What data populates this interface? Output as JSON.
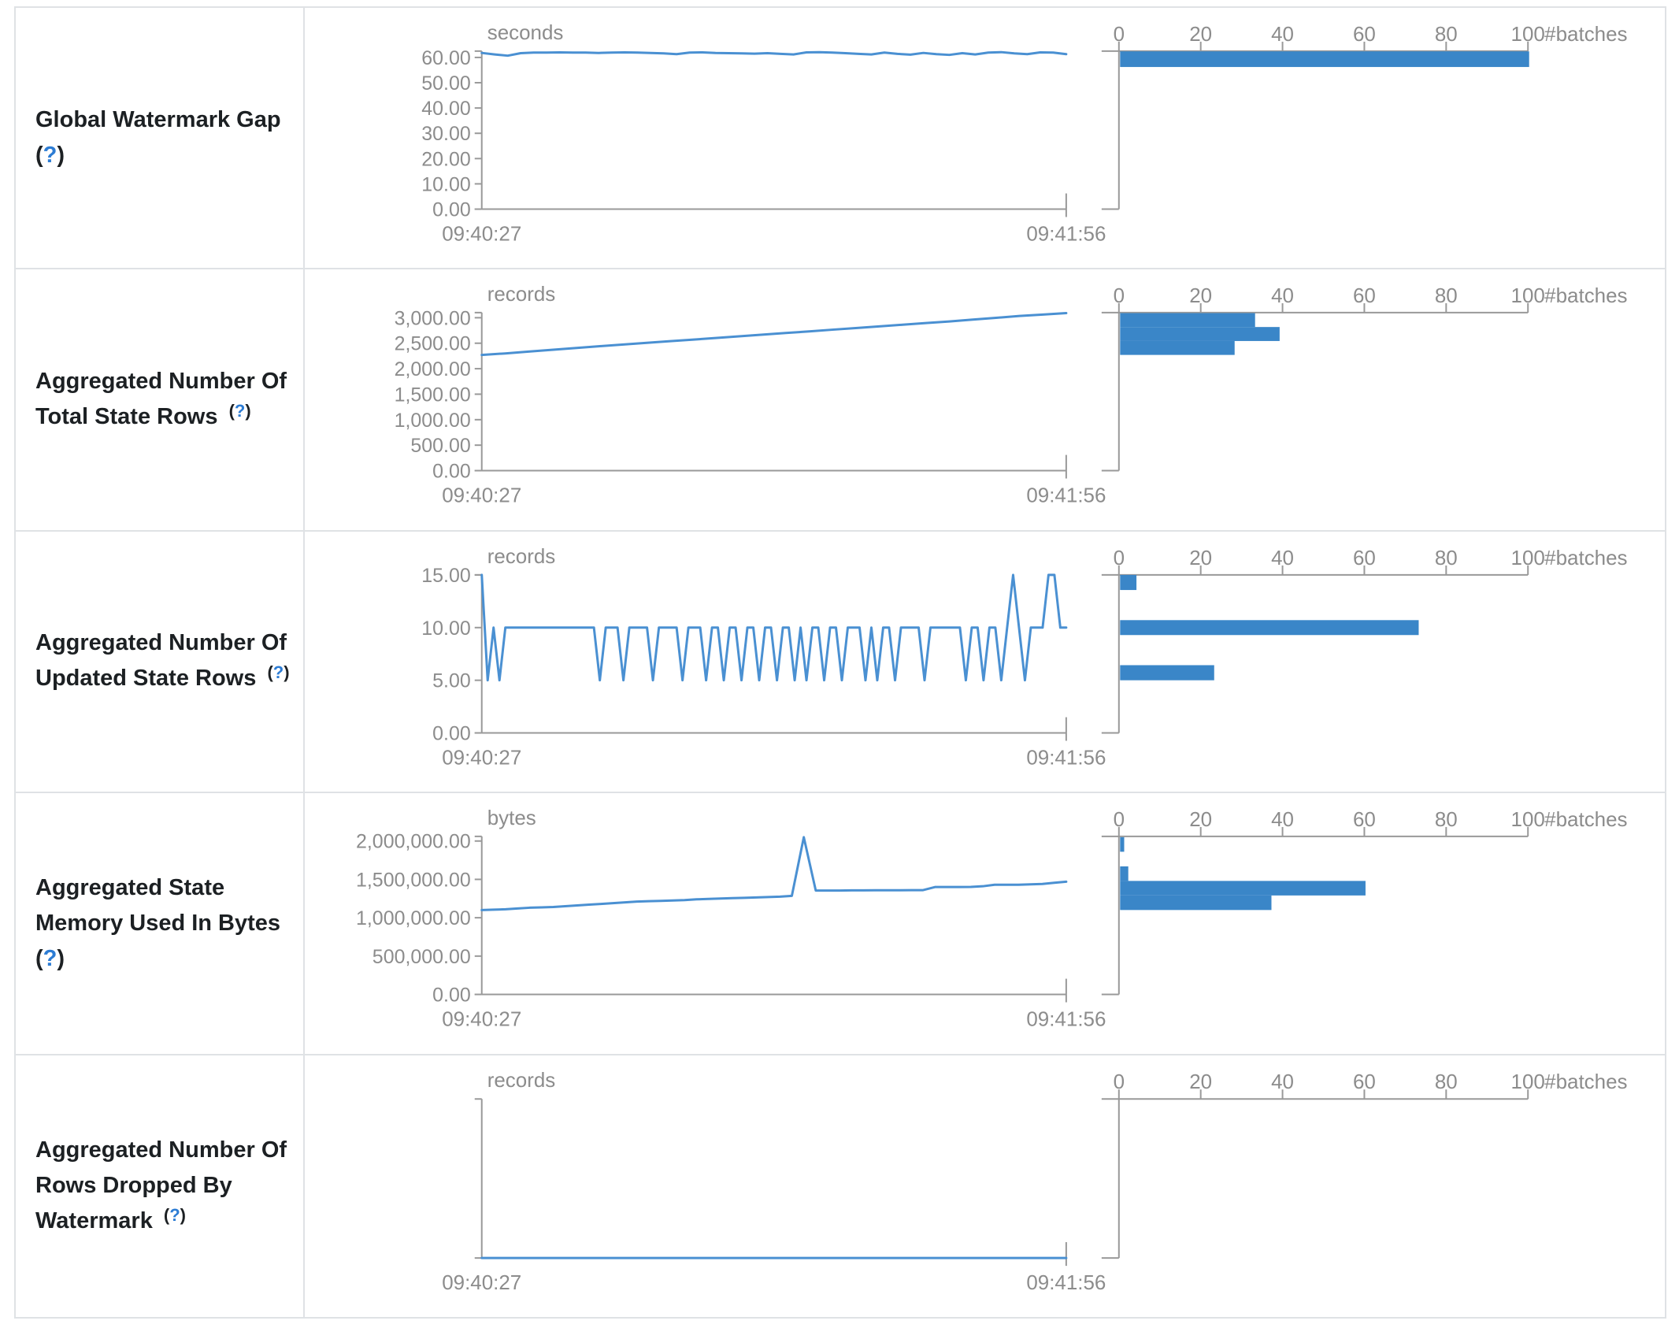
{
  "colors": {
    "line_blue": "#4a90d2",
    "bar_blue": "#3a86c8",
    "axis_gray": "#999999",
    "tick_text_gray": "#8c8c8c",
    "table_border": "#dfe2e5",
    "label_text": "#1c2023",
    "help_blue": "#2c7cd4"
  },
  "timeline_axis": {
    "start_label": "09:40:27",
    "end_label": "09:41:56"
  },
  "histogram_axis": {
    "tick_labels": [
      "0",
      "20",
      "40",
      "60",
      "80",
      "100"
    ],
    "tick_values": [
      0,
      20,
      40,
      60,
      80,
      100
    ],
    "unit_label": "#batches",
    "max": 100
  },
  "chart_data": [
    {
      "type": "line+histogram",
      "metric": "Global Watermark Gap",
      "label_lines": [
        "Global Watermark Gap"
      ],
      "help_label": "(?)",
      "help_inline": false,
      "unit": "seconds",
      "x_start": "09:40:27",
      "x_end": "09:41:56",
      "y_tick_labels": [
        "60.00",
        "50.00",
        "40.00",
        "30.00",
        "20.00",
        "10.00",
        "0.00"
      ],
      "y_tick_values": [
        60,
        50,
        40,
        30,
        20,
        10,
        0
      ],
      "y_scale_max": 62.5,
      "series": [
        61.8,
        61.2,
        60.7,
        61.7,
        61.9,
        61.9,
        62.0,
        61.9,
        61.9,
        61.8,
        61.9,
        62.0,
        61.9,
        61.8,
        61.6,
        61.3,
        61.9,
        62.0,
        61.8,
        61.7,
        61.6,
        61.5,
        61.7,
        61.4,
        61.2,
        62.0,
        62.1,
        61.9,
        61.7,
        61.4,
        61.2,
        61.9,
        61.4,
        61.1,
        61.8,
        61.3,
        61.0,
        61.7,
        61.2,
        61.9,
        62.1,
        61.6,
        61.3,
        62.0,
        61.9,
        61.3
      ],
      "histogram_bins": [
        {
          "count": 100,
          "from": 56.2,
          "to": 62.4
        }
      ]
    },
    {
      "type": "line+histogram",
      "metric": "Aggregated Number Of Total State Rows",
      "label_lines": [
        "Aggregated Number Of",
        "Total State Rows"
      ],
      "help_label": "(?)",
      "help_inline": true,
      "unit": "records",
      "x_start": "09:40:27",
      "x_end": "09:41:56",
      "y_tick_labels": [
        "3,000.00",
        "2,500.00",
        "2,000.00",
        "1,500.00",
        "1,000.00",
        "500.00",
        "0.00"
      ],
      "y_tick_values": [
        3000,
        2500,
        2000,
        1500,
        1000,
        500,
        0
      ],
      "y_scale_max": 3100,
      "series": [
        2270,
        2300,
        2335,
        2370,
        2405,
        2440,
        2472,
        2505,
        2538,
        2570,
        2602,
        2635,
        2668,
        2700,
        2732,
        2765,
        2798,
        2830,
        2862,
        2895,
        2928,
        2962,
        2998,
        3035,
        3062,
        3090
      ],
      "histogram_bins": [
        {
          "count": 33,
          "from": 2817,
          "to": 3090
        },
        {
          "count": 39,
          "from": 2543,
          "to": 2817
        },
        {
          "count": 28,
          "from": 2270,
          "to": 2543
        }
      ]
    },
    {
      "type": "line+histogram",
      "metric": "Aggregated Number Of Updated State Rows",
      "label_lines": [
        "Aggregated Number Of",
        "Updated State Rows"
      ],
      "help_label": "(?)",
      "help_inline": true,
      "unit": "records",
      "x_start": "09:40:27",
      "x_end": "09:41:56",
      "y_tick_labels": [
        "15.00",
        "10.00",
        "5.00",
        "0.00"
      ],
      "y_tick_values": [
        15,
        10,
        5,
        0
      ],
      "y_scale_max": 15,
      "series": [
        15,
        5,
        10,
        5,
        10,
        10,
        10,
        10,
        10,
        10,
        10,
        10,
        10,
        10,
        10,
        10,
        10,
        10,
        10,
        10,
        5,
        10,
        10,
        10,
        5,
        10,
        10,
        10,
        10,
        5,
        10,
        10,
        10,
        10,
        5,
        10,
        10,
        10,
        5,
        10,
        10,
        5,
        10,
        10,
        5,
        10,
        10,
        5,
        10,
        10,
        5,
        10,
        10,
        5,
        10,
        5,
        10,
        10,
        5,
        10,
        10,
        5,
        10,
        10,
        10,
        5,
        10,
        5,
        10,
        10,
        5,
        10,
        10,
        10,
        10,
        5,
        10,
        10,
        10,
        10,
        10,
        10,
        5,
        10,
        10,
        5,
        10,
        10,
        5,
        10,
        15,
        10,
        5,
        10,
        10,
        10,
        15,
        15,
        10,
        10
      ],
      "histogram_bins": [
        {
          "count": 4,
          "from": 13.57,
          "to": 15
        },
        {
          "count": 73,
          "from": 9.29,
          "to": 10.71
        },
        {
          "count": 23,
          "from": 5,
          "to": 6.43
        }
      ]
    },
    {
      "type": "line+histogram",
      "metric": "Aggregated State Memory Used In Bytes",
      "label_lines": [
        "Aggregated State",
        "Memory Used In Bytes"
      ],
      "help_label": "(?)",
      "help_inline": false,
      "unit": "bytes",
      "x_start": "09:40:27",
      "x_end": "09:41:56",
      "y_tick_labels": [
        "2,000,000.00",
        "1,500,000.00",
        "1,000,000.00",
        "500,000.00",
        "0.00"
      ],
      "y_tick_values": [
        2000000,
        1500000,
        1000000,
        500000,
        0
      ],
      "y_scale_max": 2060000,
      "series": [
        1100000,
        1105000,
        1110000,
        1120000,
        1130000,
        1135000,
        1140000,
        1150000,
        1160000,
        1170000,
        1180000,
        1190000,
        1200000,
        1210000,
        1215000,
        1220000,
        1225000,
        1230000,
        1240000,
        1245000,
        1250000,
        1255000,
        1260000,
        1265000,
        1270000,
        1275000,
        1285000,
        2050000,
        1355000,
        1355000,
        1355000,
        1357000,
        1357000,
        1358000,
        1358000,
        1358000,
        1360000,
        1360000,
        1400000,
        1400000,
        1400000,
        1402000,
        1410000,
        1430000,
        1430000,
        1430000,
        1435000,
        1440000,
        1455000,
        1470000
      ],
      "histogram_bins": [
        {
          "count": 1,
          "from": 1860000,
          "to": 2050000
        },
        {
          "count": 2,
          "from": 1480000,
          "to": 1670000
        },
        {
          "count": 60,
          "from": 1290000,
          "to": 1480000
        },
        {
          "count": 37,
          "from": 1100000,
          "to": 1290000
        }
      ]
    },
    {
      "type": "line+histogram",
      "metric": "Aggregated Number Of Rows Dropped By Watermark",
      "label_lines": [
        "Aggregated Number Of",
        "Rows Dropped By",
        "Watermark"
      ],
      "help_label": "(?)",
      "help_inline": true,
      "unit": "records",
      "x_start": "09:40:27",
      "x_end": "09:41:56",
      "y_tick_labels": [],
      "y_tick_values": [],
      "y_scale_max": 1,
      "series": [
        0,
        0
      ],
      "histogram_bins": []
    }
  ]
}
